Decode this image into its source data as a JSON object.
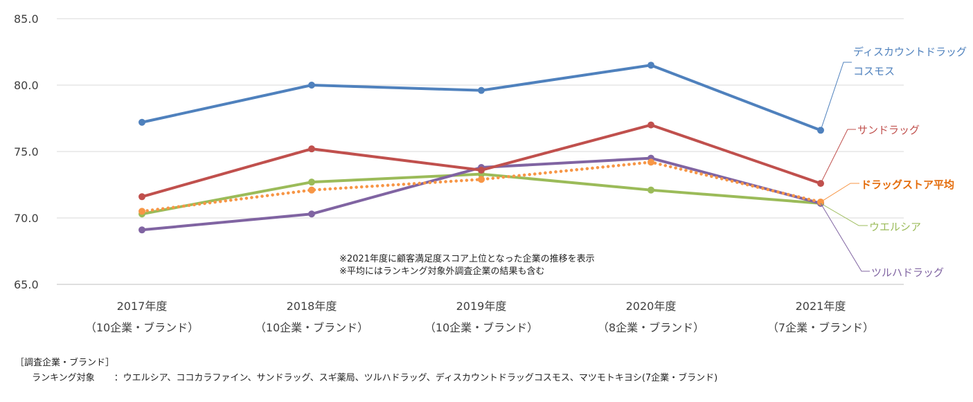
{
  "chart_data": {
    "type": "line",
    "title": "",
    "xlabel": "",
    "ylabel": "",
    "ylim": [
      65.0,
      85.0
    ],
    "yticks": [
      "65.0",
      "70.0",
      "75.0",
      "80.0",
      "85.0"
    ],
    "ytick_values": [
      65,
      70,
      75,
      80,
      85
    ],
    "grid": true,
    "categories": [
      {
        "year": "2017年度",
        "sub": "（10企業・ブランド）"
      },
      {
        "year": "2018年度",
        "sub": "（10企業・ブランド）"
      },
      {
        "year": "2019年度",
        "sub": "（10企業・ブランド）"
      },
      {
        "year": "2020年度",
        "sub": "（8企業・ブランド）"
      },
      {
        "year": "2021年度",
        "sub": "（7企業・ブランド）"
      }
    ],
    "series": [
      {
        "name": "ディスカウントドラッグ コスモス",
        "label_lines": [
          "ディスカウントドラッグ",
          "コスモス"
        ],
        "color": "#4F81BD",
        "style": "solid",
        "values": [
          77.2,
          80.0,
          79.6,
          81.5,
          76.6
        ]
      },
      {
        "name": "サンドラッグ",
        "label_lines": [
          "サンドラッグ"
        ],
        "color": "#C0504D",
        "style": "solid",
        "values": [
          71.6,
          75.2,
          73.6,
          77.0,
          72.6
        ]
      },
      {
        "name": "ウエルシア",
        "label_lines": [
          "ウエルシア"
        ],
        "color": "#9BBB59",
        "style": "solid",
        "values": [
          70.3,
          72.7,
          73.3,
          72.1,
          71.1
        ]
      },
      {
        "name": "ツルハドラッグ",
        "label_lines": [
          "ツルハドラッグ"
        ],
        "color": "#8064A2",
        "style": "solid",
        "values": [
          69.1,
          70.3,
          73.8,
          74.5,
          71.1
        ]
      },
      {
        "name": "ドラッグストア平均",
        "label_lines": [
          "ドラッグストア平均"
        ],
        "color": "#F79646",
        "label_color": "#E46C0A",
        "style": "dotted",
        "values": [
          70.5,
          72.1,
          72.9,
          74.2,
          71.2
        ]
      }
    ],
    "annotations": [
      "※2021年度に顧客満足度スコア上位となった企業の推移を表示",
      "※平均にはランキング対象外調査企業の結果も含む"
    ]
  },
  "footer": {
    "heading": "［調査企業・ブランド］",
    "label": "ランキング対象",
    "text": "：ウエルシア、ココカラファイン、サンドラッグ、スギ薬局、ツルハドラッグ、ディスカウントドラッグコスモス、マツモトキヨシ(7企業・ブランド)"
  }
}
